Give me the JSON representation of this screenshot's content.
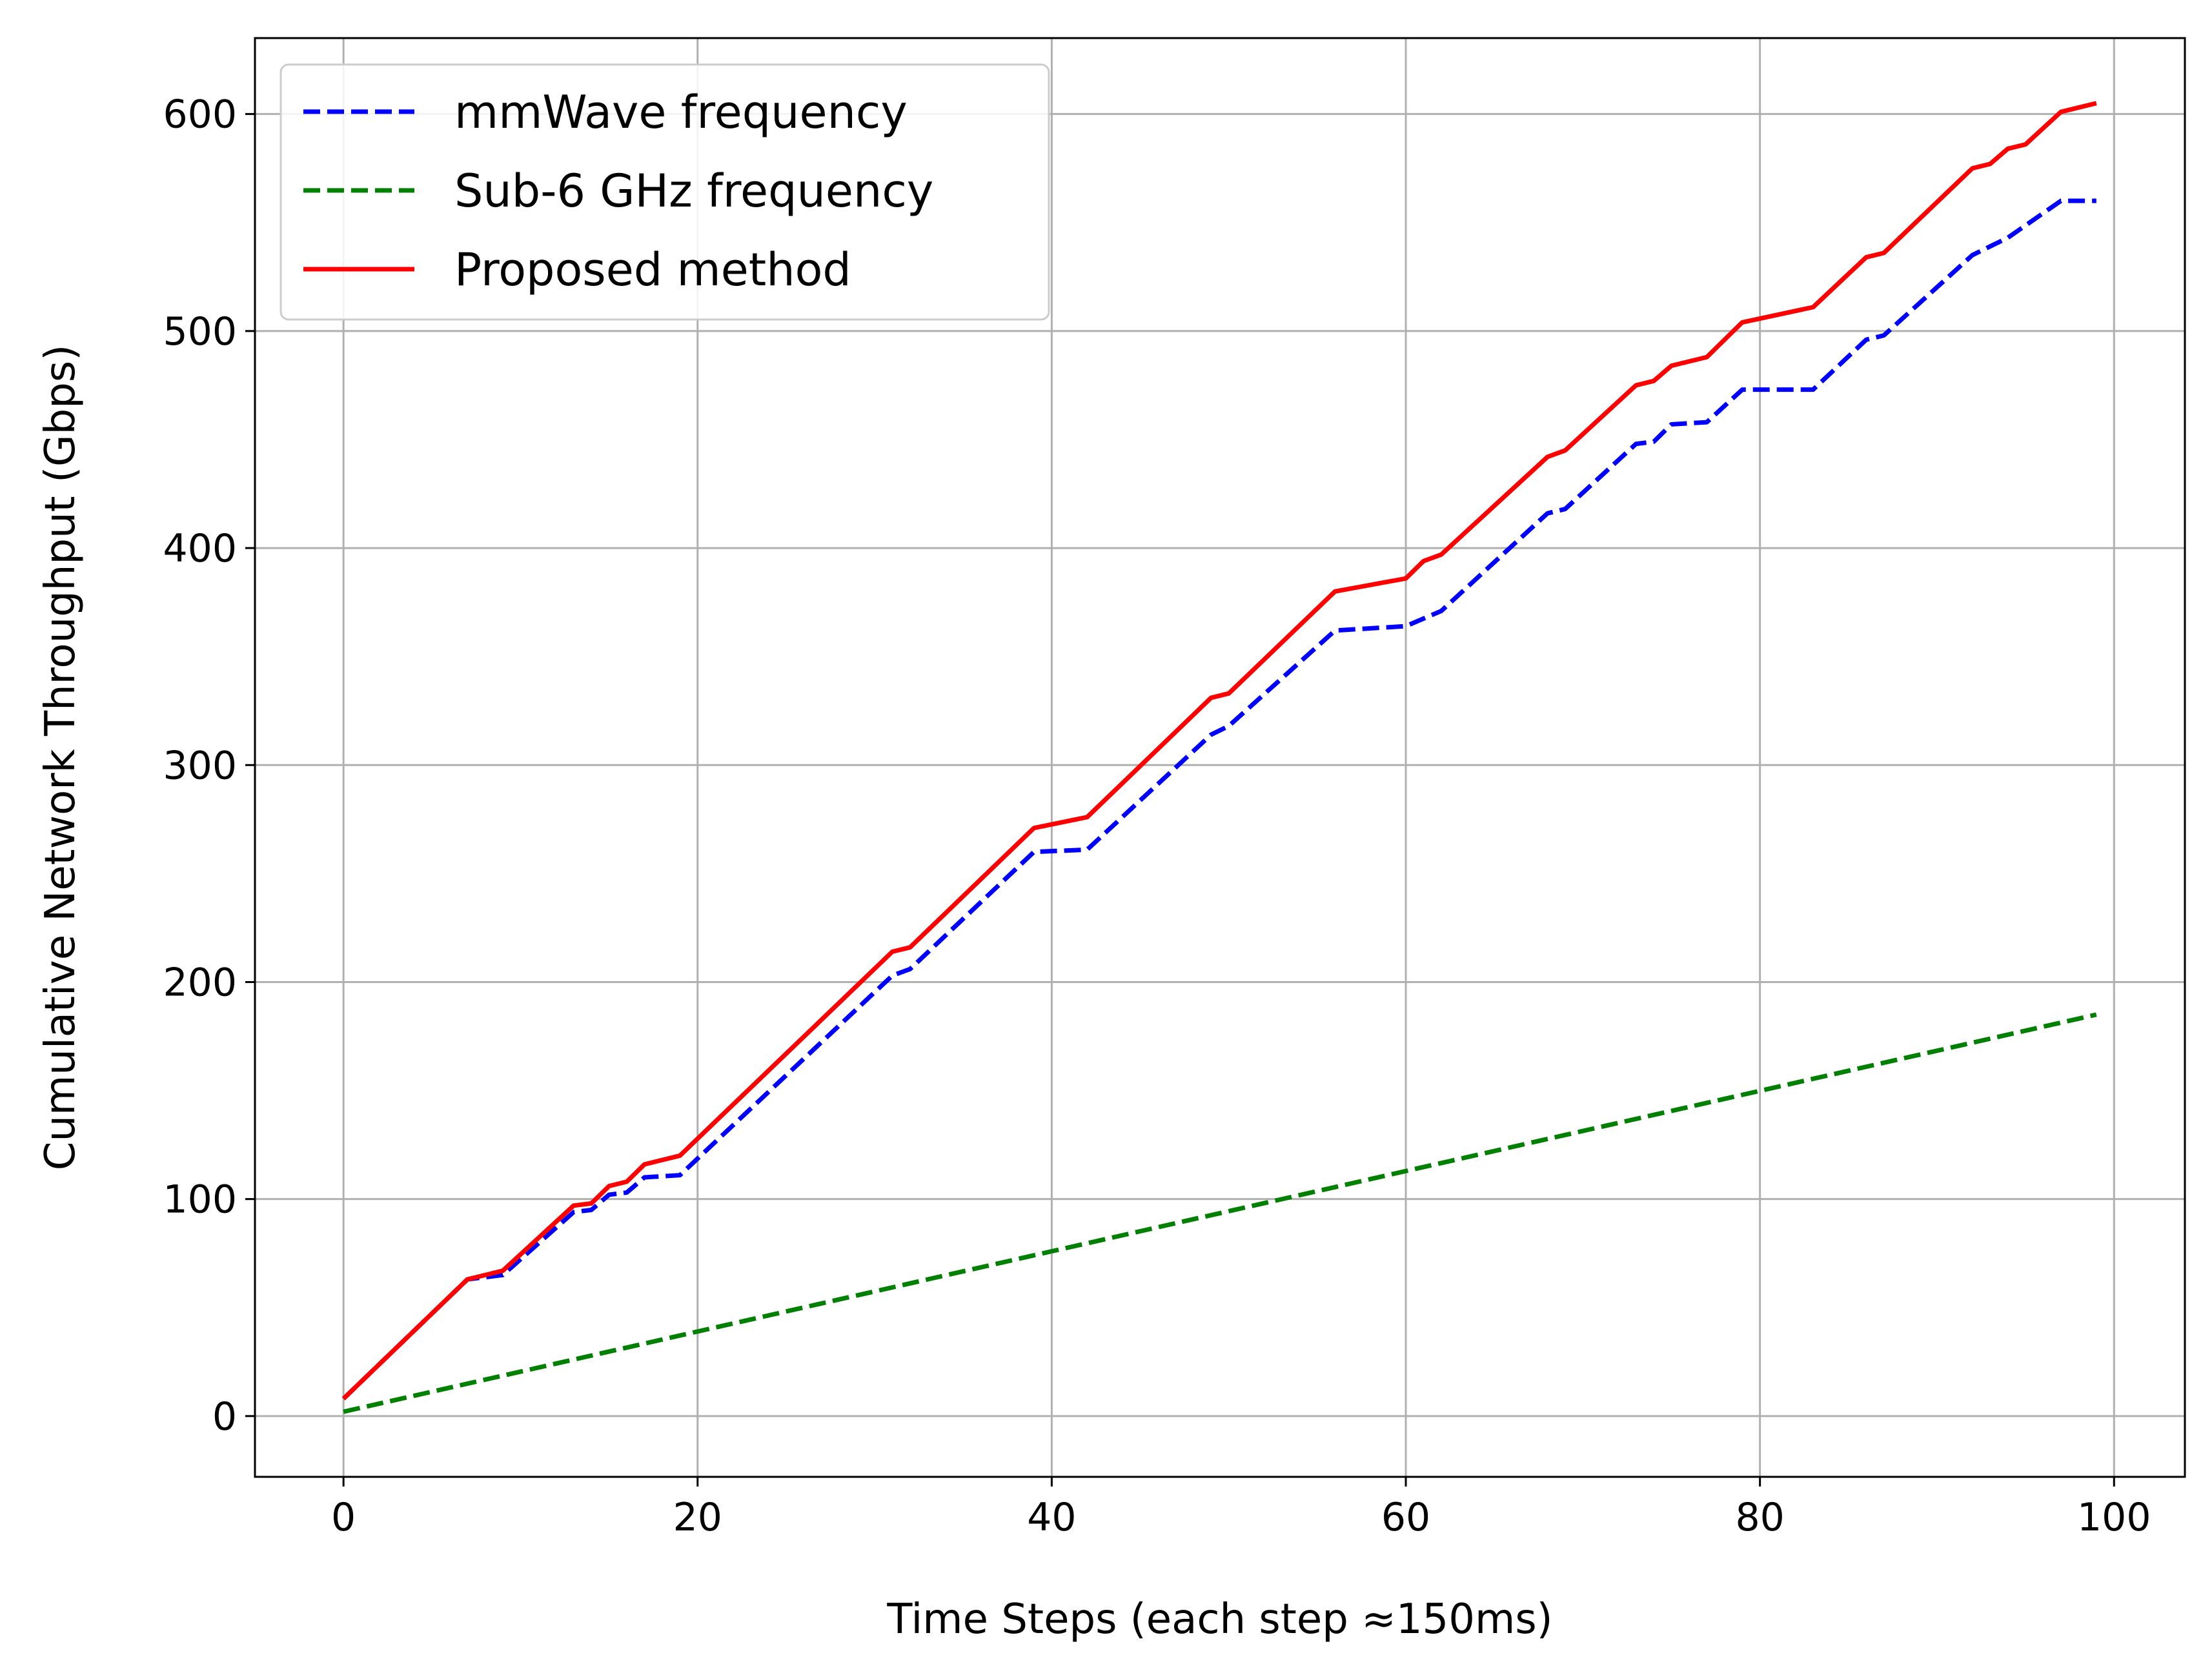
{
  "chart_data": {
    "type": "line",
    "title": "",
    "xlabel": "Time Steps (each step ≈150ms)",
    "ylabel": "Cumulative Network Throughput (Gbps)",
    "xlim": [
      -5,
      104
    ],
    "ylim": [
      -28,
      635
    ],
    "xticks": [
      0,
      20,
      40,
      60,
      80,
      100
    ],
    "yticks": [
      0,
      100,
      200,
      300,
      400,
      500,
      600
    ],
    "xtick_labels": [
      "0",
      "20",
      "40",
      "60",
      "80",
      "100"
    ],
    "ytick_labels": [
      "0",
      "100",
      "200",
      "300",
      "400",
      "500",
      "600"
    ],
    "grid": true,
    "legend_position": "top-left",
    "series": [
      {
        "name": "mmWave frequency",
        "color": "#0000ff",
        "style": "dashed",
        "x": [
          0,
          7,
          9,
          13,
          14,
          15,
          16,
          17,
          19,
          31,
          32,
          39,
          42,
          49,
          50,
          56,
          60,
          62,
          68,
          69,
          73,
          74,
          75,
          77,
          79,
          83,
          86,
          87,
          92,
          94,
          97,
          99
        ],
        "y": [
          8,
          63,
          65,
          94,
          95,
          102,
          103,
          110,
          111,
          203,
          206,
          260,
          261,
          314,
          318,
          362,
          364,
          371,
          416,
          418,
          448,
          449,
          457,
          458,
          473,
          473,
          496,
          498,
          535,
          543,
          560,
          560
        ]
      },
      {
        "name": "Sub-6 GHz frequency",
        "color": "#008000",
        "style": "dashed",
        "x": [
          0,
          99
        ],
        "y": [
          2,
          185
        ]
      },
      {
        "name": "Proposed method",
        "color": "#ff0000",
        "style": "solid",
        "x": [
          0,
          7,
          9,
          13,
          14,
          15,
          16,
          17,
          19,
          31,
          32,
          39,
          42,
          49,
          50,
          56,
          60,
          61,
          62,
          68,
          69,
          73,
          74,
          75,
          77,
          79,
          83,
          86,
          87,
          92,
          93,
          94,
          95,
          97,
          99
        ],
        "y": [
          8,
          63,
          67,
          97,
          98,
          106,
          108,
          116,
          120,
          214,
          216,
          271,
          276,
          331,
          333,
          380,
          386,
          394,
          397,
          442,
          445,
          475,
          477,
          484,
          488,
          504,
          511,
          534,
          536,
          575,
          577,
          584,
          586,
          601,
          605
        ]
      }
    ]
  }
}
